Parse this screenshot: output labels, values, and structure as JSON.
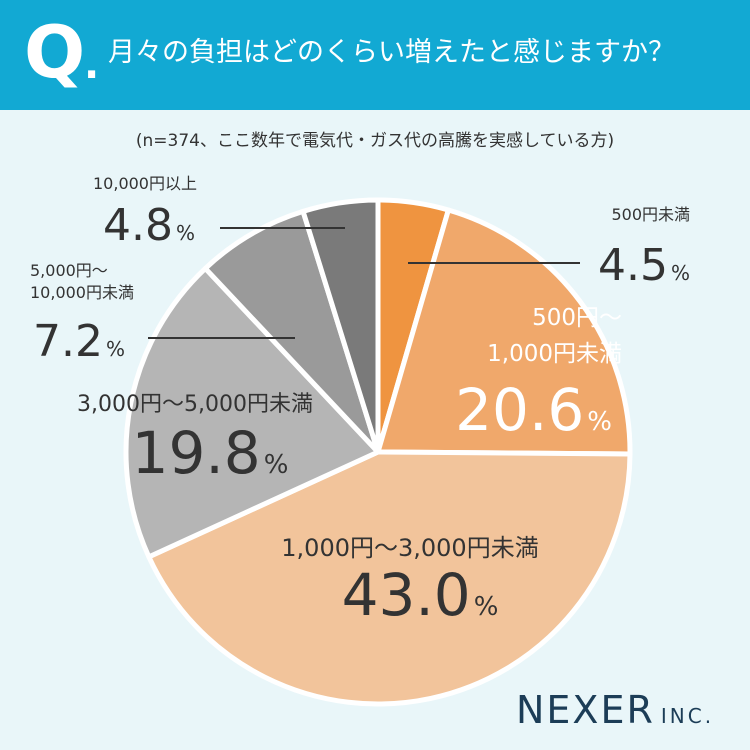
{
  "header": {
    "q_mark": "Q",
    "q_dot": ".",
    "question": "月々の負担はどのくらい増えたと感じますか？"
  },
  "subtitle": "(n=374、ここ数年で電気代・ガス代の高騰を実感している方)",
  "logo": {
    "main": "NEXER",
    "sub": "INC."
  },
  "colors": {
    "header_bg": "#12a9d3",
    "background": "#e9f6f9",
    "slice_separator": "#ffffff"
  },
  "chart_data": {
    "type": "pie",
    "unit": "%",
    "start_angle": "12 o'clock",
    "direction": "clockwise",
    "slices": [
      {
        "label": "500円未満",
        "value": 4.5,
        "value_label": "4.5",
        "color": "#ef9440"
      },
      {
        "label": "500円～\n1,000円未満",
        "value": 20.6,
        "value_label": "20.6",
        "color": "#f0a86b"
      },
      {
        "label": "1,000円～3,000円未満",
        "value": 43.0,
        "value_label": "43.0",
        "color": "#f2c49b"
      },
      {
        "label": "3,000円～5,000円未満",
        "value": 19.8,
        "value_label": "19.8",
        "color": "#b5b5b5"
      },
      {
        "label": "5,000円～\n10,000円未満",
        "value": 7.2,
        "value_label": "7.2",
        "color": "#9a9a9a"
      },
      {
        "label": "10,000円以上",
        "value": 4.8,
        "value_label": "4.8",
        "color": "#7a7a7a"
      }
    ]
  }
}
